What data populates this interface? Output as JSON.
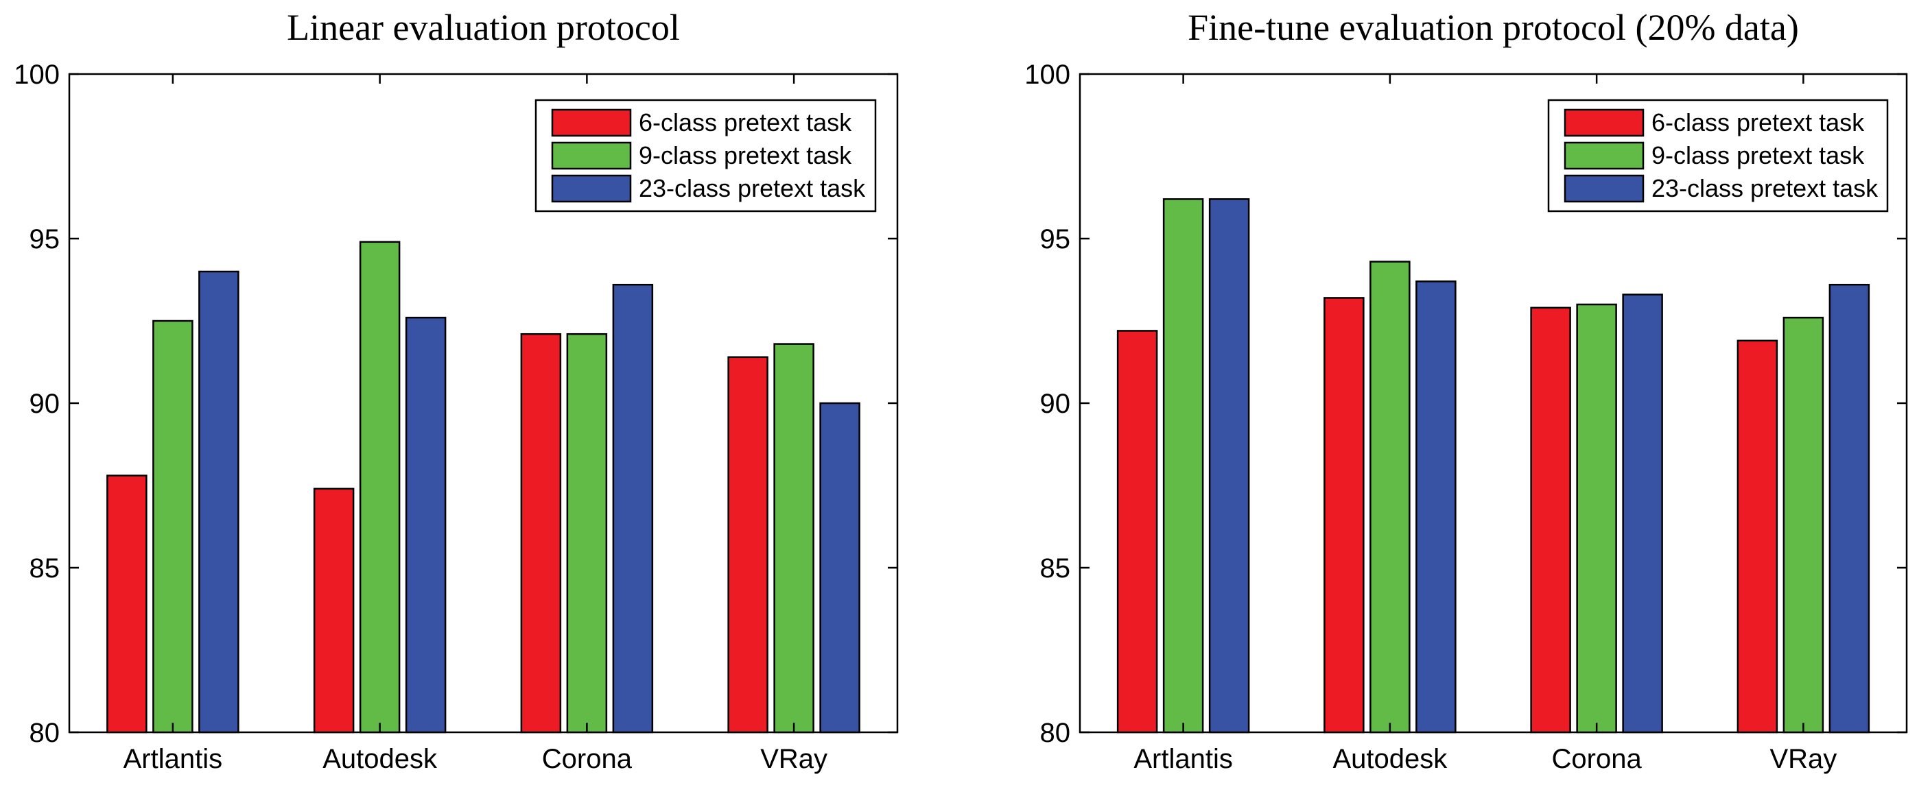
{
  "chart_data": [
    {
      "type": "bar",
      "title": "Linear evaluation protocol",
      "categories": [
        "Artlantis",
        "Autodesk",
        "Corona",
        "VRay"
      ],
      "series": [
        {
          "name": "6-class pretext task",
          "color": "#ed1c24",
          "values": [
            87.8,
            87.4,
            92.1,
            91.4
          ]
        },
        {
          "name": "9-class pretext task",
          "color": "#62bb46",
          "values": [
            92.5,
            94.9,
            92.1,
            91.8
          ]
        },
        {
          "name": "23-class pretext task",
          "color": "#3953a4",
          "values": [
            94.0,
            92.6,
            93.6,
            90.0
          ]
        }
      ],
      "ylim": [
        80,
        100
      ],
      "yticks": [
        80,
        85,
        90,
        95,
        100
      ],
      "xlabel": "",
      "ylabel": "",
      "legend": "top-right",
      "grid": false
    },
    {
      "type": "bar",
      "title": "Fine-tune evaluation protocol (20% data)",
      "categories": [
        "Artlantis",
        "Autodesk",
        "Corona",
        "VRay"
      ],
      "series": [
        {
          "name": "6-class pretext task",
          "color": "#ed1c24",
          "values": [
            92.2,
            93.2,
            92.9,
            91.9
          ]
        },
        {
          "name": "9-class pretext task",
          "color": "#62bb46",
          "values": [
            96.2,
            94.3,
            93.0,
            92.6
          ]
        },
        {
          "name": "23-class pretext task",
          "color": "#3953a4",
          "values": [
            96.2,
            93.7,
            93.3,
            93.6
          ]
        }
      ],
      "ylim": [
        80,
        100
      ],
      "yticks": [
        80,
        85,
        90,
        95,
        100
      ],
      "xlabel": "",
      "ylabel": "",
      "legend": "top-right",
      "grid": false
    }
  ]
}
